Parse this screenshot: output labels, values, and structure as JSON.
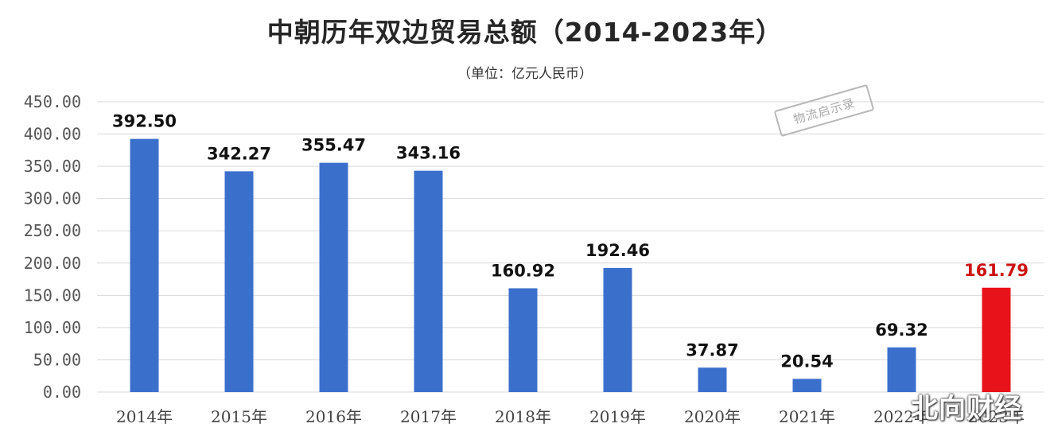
{
  "title": "中朝历年双边贸易总额（2014-2023年）",
  "subtitle": "（单位：亿元人民币）",
  "stamp_text": "物流启示录",
  "watermark_text": "北向财经",
  "colors": {
    "bar": "#3b6fcc",
    "highlight": "#e8121a",
    "grid": "#d9d9d9"
  },
  "chart_data": {
    "type": "bar",
    "title": "中朝历年双边贸易总额（2014-2023年）",
    "subtitle": "（单位：亿元人民币）",
    "categories": [
      "2014年",
      "2015年",
      "2016年",
      "2017年",
      "2018年",
      "2019年",
      "2020年",
      "2021年",
      "2022年",
      "2023年"
    ],
    "values": [
      392.5,
      342.27,
      355.47,
      343.16,
      160.92,
      192.46,
      37.87,
      20.54,
      69.32,
      161.79
    ],
    "value_labels": [
      "392.50",
      "342.27",
      "355.47",
      "343.16",
      "160.92",
      "192.46",
      "37.87",
      "20.54",
      "69.32",
      "161.79"
    ],
    "highlight_index": 9,
    "ylim": [
      0,
      450
    ],
    "yticks": [
      "0.00",
      "50.00",
      "100.00",
      "150.00",
      "200.00",
      "250.00",
      "300.00",
      "350.00",
      "400.00",
      "450.00"
    ],
    "grid": true,
    "legend": "none"
  }
}
